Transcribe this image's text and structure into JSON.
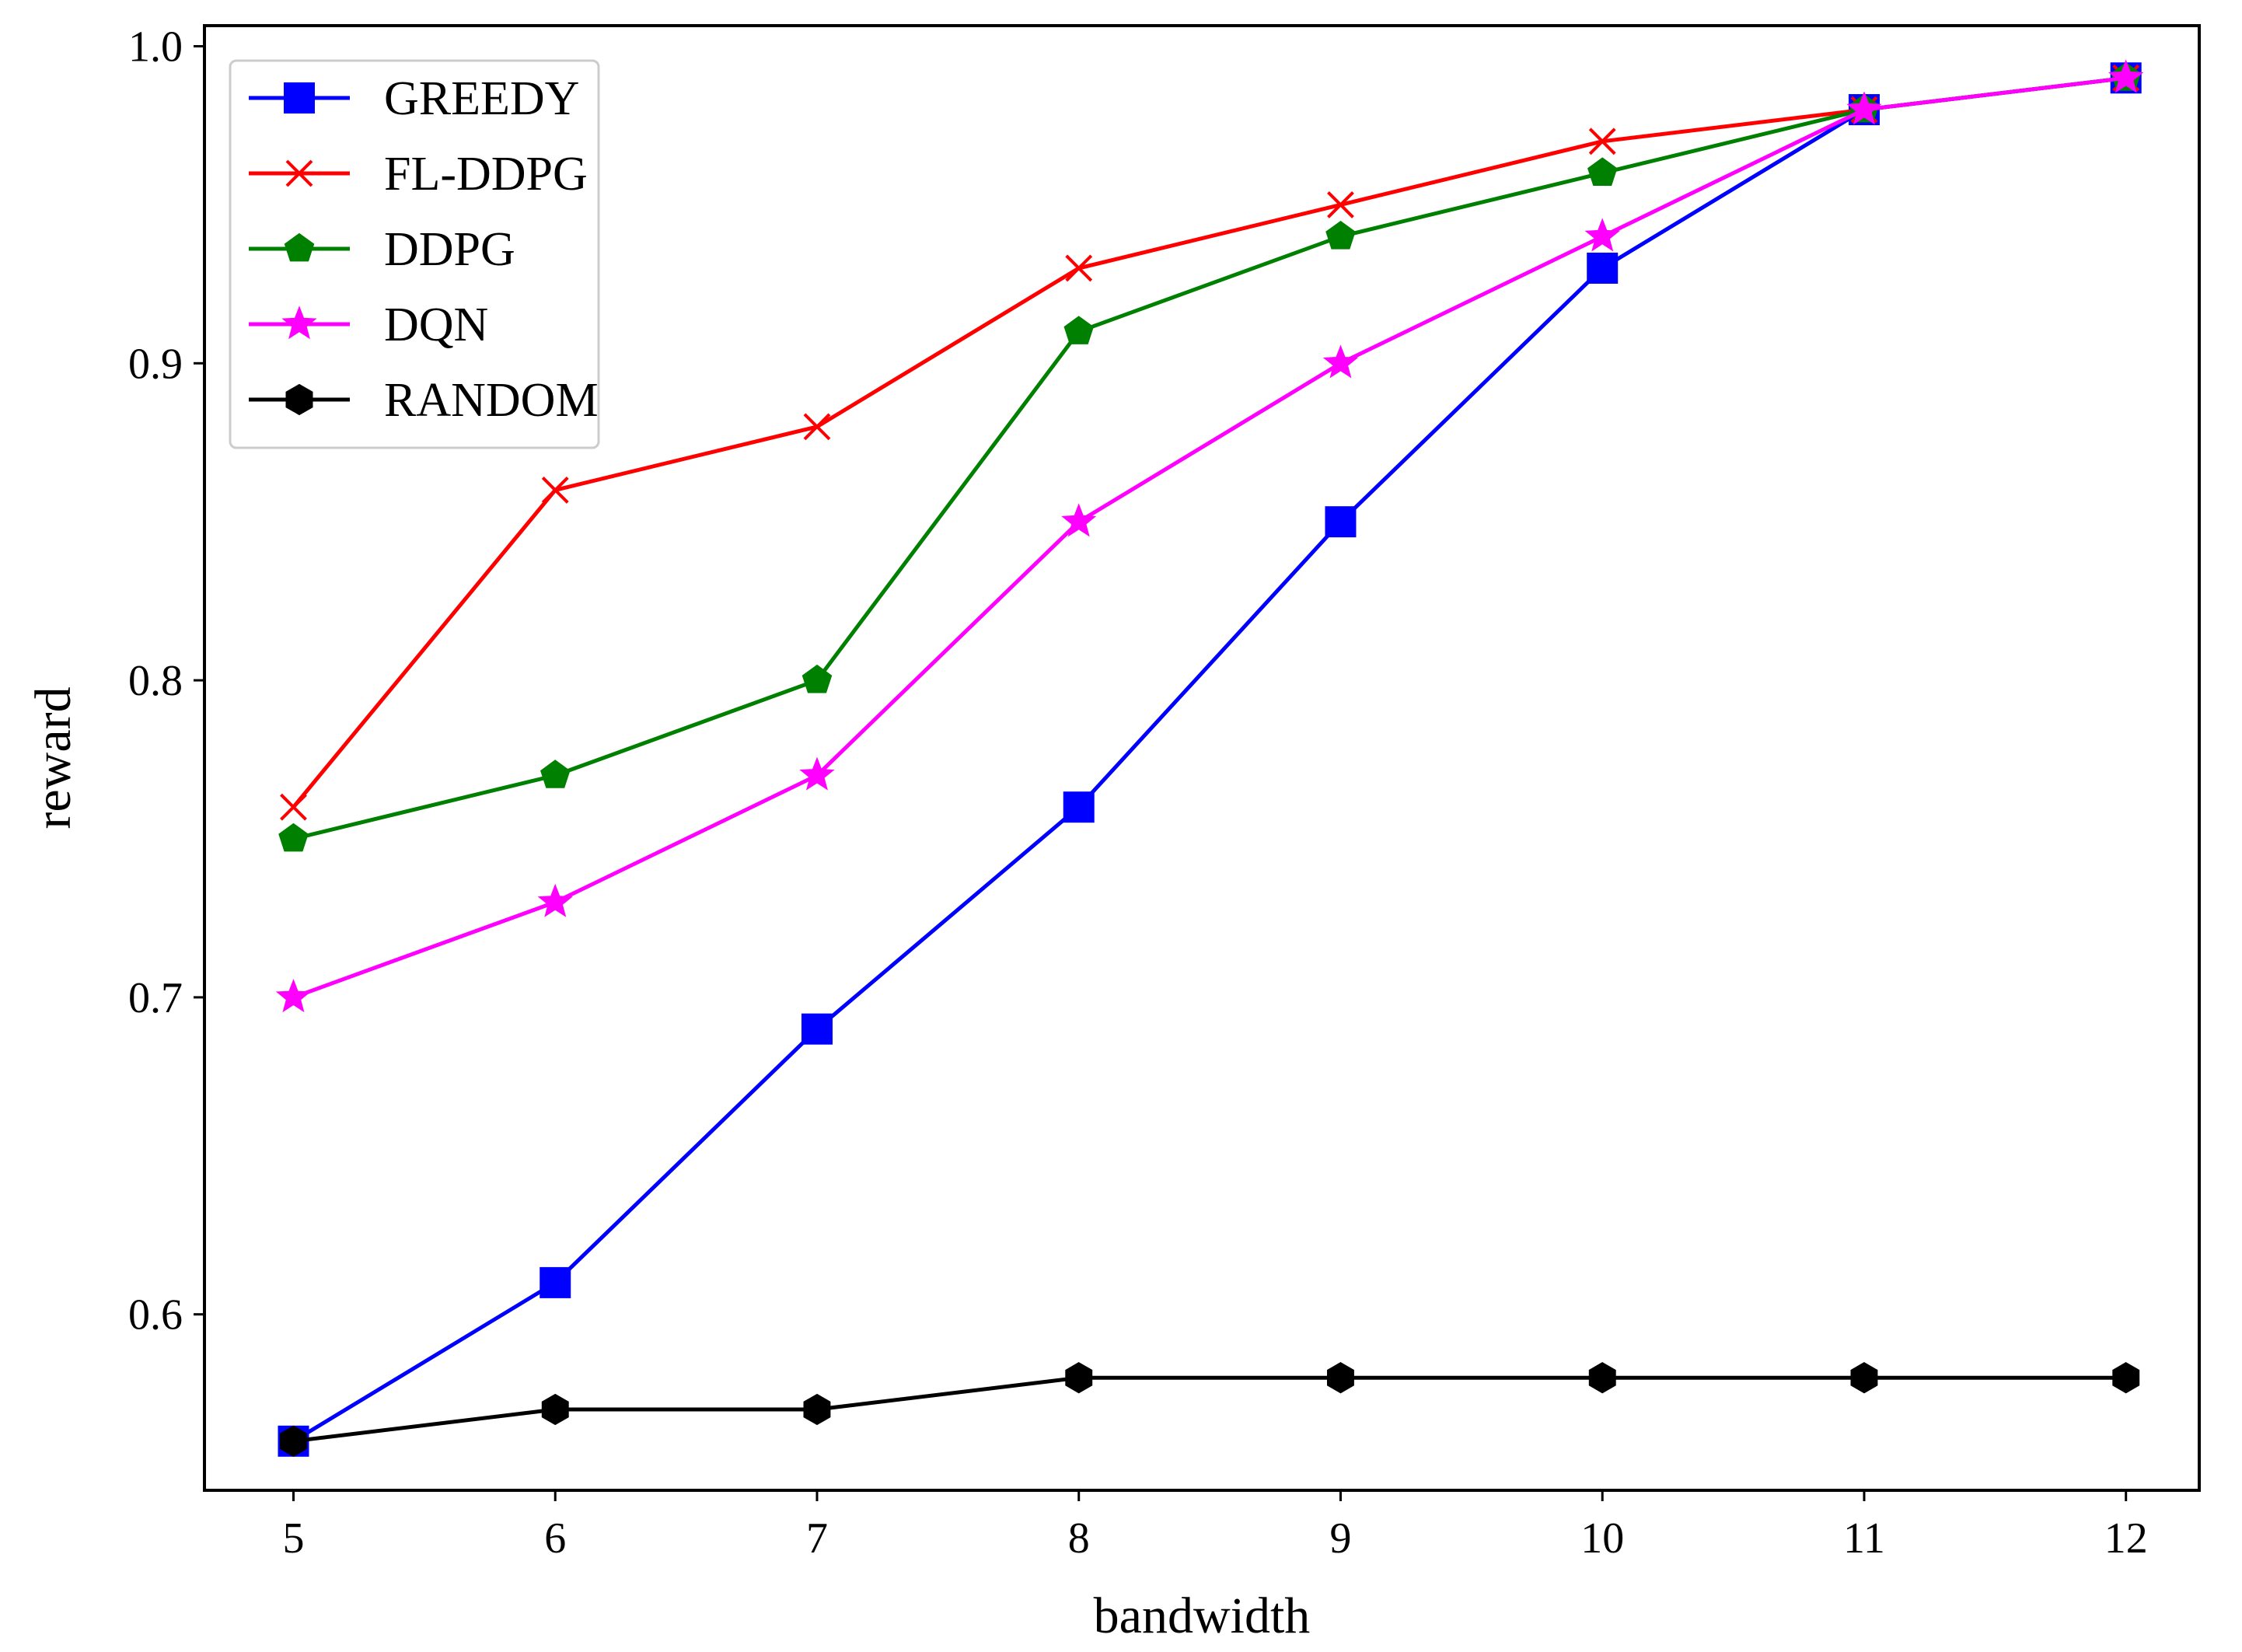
{
  "chart_data": {
    "type": "line",
    "title": "",
    "xlabel": "bandwidth",
    "ylabel": "reward",
    "x": [
      5,
      6,
      7,
      8,
      9,
      10,
      11,
      12
    ],
    "xticks": [
      "5",
      "6",
      "7",
      "8",
      "9",
      "10",
      "11",
      "12"
    ],
    "yticks": [
      "0.6",
      "0.7",
      "0.8",
      "0.9",
      "1.0"
    ],
    "xlim": [
      4.66,
      12.28
    ],
    "ylim": [
      0.5445,
      1.0065
    ],
    "grid": false,
    "legend_position": "top-left",
    "series": [
      {
        "name": "GREEDY",
        "color": "#0000ff",
        "marker": "square",
        "values": [
          0.56,
          0.61,
          0.69,
          0.76,
          0.85,
          0.93,
          0.98,
          0.99
        ]
      },
      {
        "name": "FL-DDPG",
        "color": "#ff0000",
        "marker": "x",
        "values": [
          0.76,
          0.86,
          0.88,
          0.93,
          0.95,
          0.97,
          0.98,
          0.99
        ]
      },
      {
        "name": "DDPG",
        "color": "#008000",
        "marker": "pentagon",
        "values": [
          0.75,
          0.77,
          0.8,
          0.91,
          0.94,
          0.96,
          0.98,
          0.99
        ]
      },
      {
        "name": "DQN",
        "color": "#ff00ff",
        "marker": "star",
        "values": [
          0.7,
          0.73,
          0.77,
          0.85,
          0.9,
          0.94,
          0.98,
          0.99
        ]
      },
      {
        "name": "RANDOM",
        "color": "#000000",
        "marker": "hexagon",
        "values": [
          0.56,
          0.57,
          0.57,
          0.58,
          0.58,
          0.58,
          0.58,
          0.58
        ]
      }
    ]
  }
}
